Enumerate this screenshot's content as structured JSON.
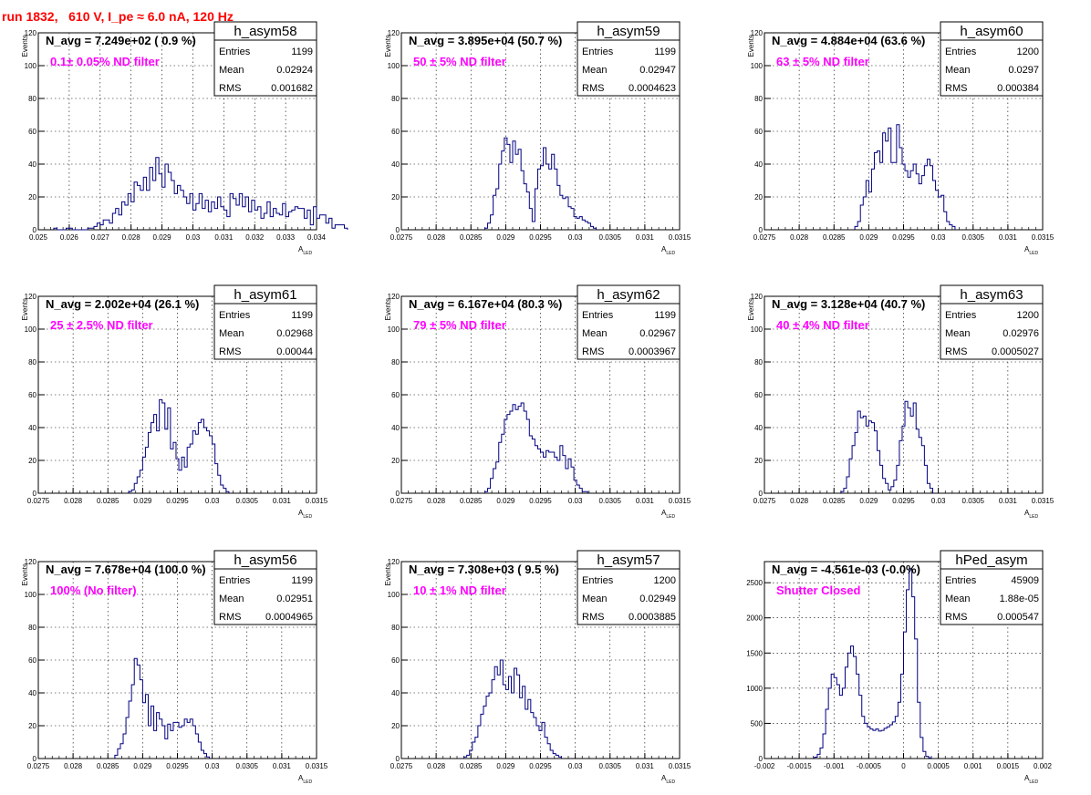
{
  "page_title": "run 1832,   610 V, I_pe ≈ 6.0 nA, 120 Hz",
  "colors": {
    "title": "#ff0000",
    "annotation": "#ff00ff",
    "histogram": "#000080",
    "grid": "#000000"
  },
  "chart_data": [
    {
      "type": "histogram",
      "name": "h_asym58",
      "n_avg": "N_avg = 7.249e+02 ( 0.9 %)",
      "filter": "0.1± 0.05% ND filter",
      "stats": {
        "entries": "1199",
        "mean": "0.02924",
        "rms": "0.001682"
      },
      "xlim": [
        0.025,
        0.034
      ],
      "ylim": [
        0,
        120
      ],
      "xlabel": "A",
      "xlabel_sub": "LED",
      "ylabel": "Events",
      "xticks": [
        "0.025",
        "0.026",
        "0.027",
        "0.028",
        "0.029",
        "0.03",
        "0.031",
        "0.032",
        "0.033",
        "0.034"
      ],
      "xtick_values": [
        0.025,
        0.026,
        0.027,
        0.028,
        0.029,
        0.03,
        0.031,
        0.032,
        0.033,
        0.034
      ],
      "yticks": [
        0,
        20,
        40,
        60,
        80,
        100,
        120
      ],
      "grid": true,
      "bins": {
        "x0": 0.0255,
        "width": 0.0001,
        "counts": [
          1,
          0,
          0,
          0,
          1,
          1,
          0,
          0,
          0,
          0,
          0,
          1,
          1,
          2,
          4,
          3,
          6,
          6,
          4,
          10,
          13,
          9,
          17,
          15,
          22,
          17,
          29,
          27,
          24,
          32,
          24,
          38,
          30,
          44,
          34,
          26,
          40,
          35,
          30,
          22,
          27,
          24,
          20,
          16,
          22,
          12,
          16,
          22,
          13,
          18,
          11,
          17,
          13,
          20,
          14,
          12,
          8,
          22,
          19,
          15,
          22,
          14,
          20,
          11,
          18,
          12,
          14,
          7,
          10,
          17,
          8,
          13,
          10,
          9,
          16,
          8,
          11,
          12,
          14,
          13,
          13,
          7,
          12,
          3,
          14,
          7,
          9,
          9,
          4,
          7,
          1,
          3,
          3,
          3,
          1
        ]
      }
    },
    {
      "type": "histogram",
      "name": "h_asym59",
      "n_avg": "N_avg = 3.895e+04 (50.7 %)",
      "filter": "50 ± 5% ND filter",
      "stats": {
        "entries": "1199",
        "mean": "0.02947",
        "rms": "0.0004623"
      },
      "xlim": [
        0.0275,
        0.0315
      ],
      "ylim": [
        0,
        120
      ],
      "xlabel": "A",
      "xlabel_sub": "LED",
      "ylabel": "Events",
      "xticks": [
        "0.0275",
        "0.028",
        "0.0285",
        "0.029",
        "0.0295",
        "0.03",
        "0.0305",
        "0.031",
        "0.0315"
      ],
      "xtick_values": [
        0.0275,
        0.028,
        0.0285,
        0.029,
        0.0295,
        0.03,
        0.0305,
        0.031,
        0.0315
      ],
      "yticks": [
        0,
        20,
        40,
        60,
        80,
        100,
        120
      ],
      "grid": true,
      "bins": {
        "x0": 0.0287,
        "width": 4e-05,
        "counts": [
          1,
          4,
          9,
          21,
          25,
          40,
          48,
          56,
          52,
          41,
          54,
          46,
          49,
          36,
          28,
          23,
          13,
          5,
          25,
          37,
          39,
          50,
          40,
          37,
          46,
          37,
          27,
          21,
          19,
          20,
          14,
          13,
          8,
          7,
          8,
          6,
          5,
          4,
          2,
          1
        ]
      }
    },
    {
      "type": "histogram",
      "name": "h_asym60",
      "n_avg": "N_avg = 4.884e+04 (63.6 %)",
      "filter": "63 ± 5% ND filter",
      "stats": {
        "entries": "1200",
        "mean": "0.0297",
        "rms": "0.000384"
      },
      "xlim": [
        0.0275,
        0.0315
      ],
      "ylim": [
        0,
        120
      ],
      "xlabel": "A",
      "xlabel_sub": "LED",
      "ylabel": "Events",
      "xticks": [
        "0.0275",
        "0.028",
        "0.0285",
        "0.029",
        "0.0295",
        "0.03",
        "0.0305",
        "0.031",
        "0.0315"
      ],
      "xtick_values": [
        0.0275,
        0.028,
        0.0285,
        0.029,
        0.0295,
        0.03,
        0.0305,
        0.031,
        0.0315
      ],
      "yticks": [
        0,
        20,
        40,
        60,
        80,
        100,
        120
      ],
      "grid": true,
      "bins": {
        "x0": 0.0288,
        "width": 4e-05,
        "counts": [
          2,
          5,
          15,
          20,
          30,
          23,
          37,
          47,
          48,
          41,
          59,
          54,
          62,
          41,
          41,
          64,
          50,
          40,
          36,
          32,
          36,
          40,
          34,
          28,
          33,
          39,
          43,
          39,
          30,
          24,
          20,
          21,
          11,
          5,
          3,
          2
        ]
      }
    },
    {
      "type": "histogram",
      "name": "h_asym61",
      "n_avg": "N_avg = 2.002e+04 (26.1 %)",
      "filter": "25 ± 2.5% ND filter",
      "stats": {
        "entries": "1199",
        "mean": "0.02968",
        "rms": "0.00044"
      },
      "xlim": [
        0.0275,
        0.0315
      ],
      "ylim": [
        0,
        120
      ],
      "xlabel": "A",
      "xlabel_sub": "LED",
      "ylabel": "Events",
      "xticks": [
        "0.0275",
        "0.028",
        "0.0285",
        "0.029",
        "0.0295",
        "0.03",
        "0.0305",
        "0.031",
        "0.0315"
      ],
      "xtick_values": [
        0.0275,
        0.028,
        0.0285,
        0.029,
        0.0295,
        0.03,
        0.0305,
        0.031,
        0.0315
      ],
      "yticks": [
        0,
        20,
        40,
        60,
        80,
        100,
        120
      ],
      "grid": true,
      "bins": {
        "x0": 0.0288,
        "width": 4e-05,
        "counts": [
          1,
          2,
          6,
          10,
          14,
          22,
          28,
          37,
          43,
          48,
          38,
          57,
          55,
          39,
          52,
          27,
          31,
          21,
          14,
          22,
          16,
          28,
          30,
          38,
          36,
          43,
          45,
          40,
          38,
          35,
          30,
          18,
          11,
          5,
          3,
          1
        ]
      }
    },
    {
      "type": "histogram",
      "name": "h_asym62",
      "n_avg": "N_avg = 6.167e+04 (80.3 %)",
      "filter": "79 ± 5% ND filter",
      "stats": {
        "entries": "1199",
        "mean": "0.02967",
        "rms": "0.0003967"
      },
      "xlim": [
        0.0275,
        0.0315
      ],
      "ylim": [
        0,
        120
      ],
      "xlabel": "A",
      "xlabel_sub": "LED",
      "ylabel": "Events",
      "xticks": [
        "0.0275",
        "0.028",
        "0.0285",
        "0.029",
        "0.0295",
        "0.03",
        "0.0305",
        "0.031",
        "0.0315"
      ],
      "xtick_values": [
        0.0275,
        0.028,
        0.0285,
        0.029,
        0.0295,
        0.03,
        0.0305,
        0.031,
        0.0315
      ],
      "yticks": [
        0,
        20,
        40,
        60,
        80,
        100,
        120
      ],
      "grid": true,
      "bins": {
        "x0": 0.0287,
        "width": 4e-05,
        "counts": [
          1,
          3,
          9,
          15,
          19,
          31,
          36,
          45,
          48,
          50,
          54,
          51,
          53,
          55,
          50,
          45,
          35,
          33,
          29,
          27,
          25,
          22,
          26,
          25,
          25,
          22,
          20,
          29,
          23,
          15,
          21,
          16,
          8,
          5,
          3,
          1,
          1
        ]
      }
    },
    {
      "type": "histogram",
      "name": "h_asym63",
      "n_avg": "N_avg = 3.128e+04 (40.7 %)",
      "filter": "40 ± 4% ND filter",
      "stats": {
        "entries": "1200",
        "mean": "0.02976",
        "rms": "0.0005027"
      },
      "xlim": [
        0.0275,
        0.0315
      ],
      "ylim": [
        0,
        120
      ],
      "xlabel": "A",
      "xlabel_sub": "LED",
      "ylabel": "Events",
      "xticks": [
        "0.0275",
        "0.028",
        "0.0285",
        "0.029",
        "0.0295",
        "0.03",
        "0.0305",
        "0.031",
        "0.0315"
      ],
      "xtick_values": [
        0.0275,
        0.028,
        0.0285,
        0.029,
        0.0295,
        0.03,
        0.0305,
        0.031,
        0.0315
      ],
      "yticks": [
        0,
        20,
        40,
        60,
        80,
        100,
        120
      ],
      "grid": true,
      "bins": {
        "x0": 0.0286,
        "width": 4e-05,
        "counts": [
          1,
          3,
          10,
          21,
          29,
          37,
          50,
          46,
          47,
          41,
          44,
          43,
          38,
          26,
          17,
          9,
          6,
          2,
          4,
          8,
          17,
          32,
          41,
          56,
          52,
          47,
          55,
          39,
          34,
          29,
          17,
          6,
          3
        ]
      }
    },
    {
      "type": "histogram",
      "name": "h_asym56",
      "n_avg": "N_avg = 7.678e+04 (100.0 %)",
      "filter": "100% (No filter)",
      "stats": {
        "entries": "1199",
        "mean": "0.02951",
        "rms": "0.0004965"
      },
      "xlim": [
        0.0275,
        0.0315
      ],
      "ylim": [
        0,
        120
      ],
      "xlabel": "A",
      "xlabel_sub": "LED",
      "ylabel": "Events",
      "xticks": [
        "0.0275",
        "0.028",
        "0.0285",
        "0.029",
        "0.0295",
        "0.03",
        "0.0305",
        "0.031",
        "0.0315"
      ],
      "xtick_values": [
        0.0275,
        0.028,
        0.0285,
        0.029,
        0.0295,
        0.03,
        0.0305,
        0.031,
        0.0315
      ],
      "yticks": [
        0,
        20,
        40,
        60,
        80,
        100,
        120
      ],
      "grid": true,
      "bins": {
        "x0": 0.0286,
        "width": 4e-05,
        "counts": [
          2,
          6,
          9,
          15,
          25,
          35,
          45,
          61,
          57,
          48,
          34,
          39,
          20,
          32,
          17,
          28,
          24,
          20,
          12,
          21,
          17,
          22,
          22,
          19,
          20,
          24,
          22,
          24,
          20,
          15,
          10,
          5,
          3,
          1
        ]
      }
    },
    {
      "type": "histogram",
      "name": "h_asym57",
      "n_avg": "N_avg = 7.308e+03 ( 9.5 %)",
      "filter": "10 ± 1% ND filter",
      "stats": {
        "entries": "1200",
        "mean": "0.02949",
        "rms": "0.0003885"
      },
      "xlim": [
        0.0275,
        0.0315
      ],
      "ylim": [
        0,
        120
      ],
      "xlabel": "A",
      "xlabel_sub": "LED",
      "ylabel": "Events",
      "xticks": [
        "0.0275",
        "0.028",
        "0.0285",
        "0.029",
        "0.0295",
        "0.03",
        "0.0305",
        "0.031",
        "0.0315"
      ],
      "xtick_values": [
        0.0275,
        0.028,
        0.0285,
        0.029,
        0.0295,
        0.03,
        0.0305,
        0.031,
        0.0315
      ],
      "yticks": [
        0,
        20,
        40,
        60,
        80,
        100,
        120
      ],
      "grid": true,
      "bins": {
        "x0": 0.0284,
        "width": 4e-05,
        "counts": [
          1,
          2,
          5,
          10,
          13,
          20,
          27,
          32,
          38,
          40,
          48,
          56,
          51,
          60,
          45,
          42,
          50,
          40,
          55,
          51,
          37,
          44,
          30,
          36,
          28,
          25,
          20,
          17,
          22,
          13,
          9,
          5,
          3,
          2,
          1
        ]
      }
    },
    {
      "type": "histogram",
      "name": "hPed_asym",
      "n_avg": "N_avg = -4.561e-03 (-0.0%)",
      "filter": "Shutter Closed",
      "stats": {
        "entries": "45909",
        "mean": "1.88e-05",
        "rms": "0.000547"
      },
      "xlim": [
        -0.002,
        0.002
      ],
      "ylim": [
        0,
        2800
      ],
      "xlabel": "A",
      "xlabel_sub": "LED",
      "ylabel": "",
      "xticks": [
        "-0.002",
        "-0.0015",
        "-0.001",
        "-0.0005",
        "0",
        "0.0005",
        "0.001",
        "0.0015",
        "0.002"
      ],
      "xtick_values": [
        -0.002,
        -0.0015,
        -0.001,
        -0.0005,
        0,
        0.0005,
        0.001,
        0.0015,
        0.002
      ],
      "yticks": [
        0,
        500,
        1000,
        1500,
        2000,
        2500
      ],
      "grid": true,
      "bins": {
        "x0": -0.00128,
        "width": 4e-05,
        "counts": [
          20,
          60,
          150,
          350,
          700,
          1000,
          1200,
          1150,
          1050,
          900,
          1000,
          1300,
          1500,
          1600,
          1450,
          1200,
          900,
          600,
          500,
          450,
          420,
          400,
          420,
          390,
          400,
          430,
          450,
          480,
          520,
          600,
          800,
          1200,
          1800,
          2400,
          2700,
          2300,
          1700,
          800,
          300,
          100,
          30,
          10
        ]
      }
    }
  ]
}
